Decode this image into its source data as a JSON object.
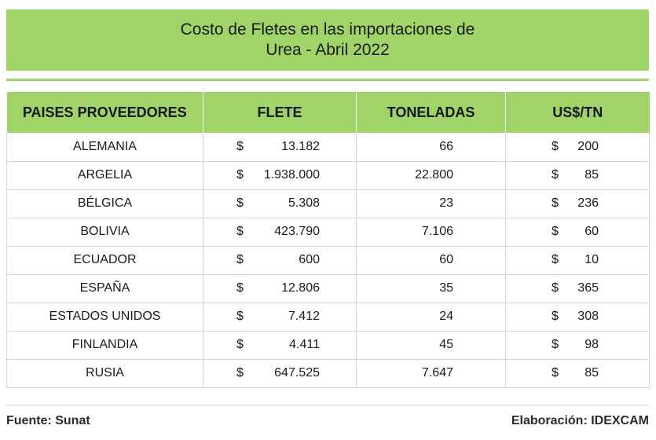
{
  "title": {
    "line1": "Costo de Fletes en las importaciones de",
    "line2": "Urea - Abril 2022"
  },
  "table": {
    "headers": [
      "PAISES PROVEEDORES",
      "FLETE",
      "TONELADAS",
      "US$/TN"
    ],
    "currency_symbol": "$",
    "rows": [
      {
        "pais": "ALEMANIA",
        "flete": "13.182",
        "toneladas": "66",
        "usd_tn": "200"
      },
      {
        "pais": "ARGELIA",
        "flete": "1.938.000",
        "toneladas": "22.800",
        "usd_tn": "85"
      },
      {
        "pais": "BÉLGICA",
        "flete": "5.308",
        "toneladas": "23",
        "usd_tn": "236"
      },
      {
        "pais": "BOLIVIA",
        "flete": "423.790",
        "toneladas": "7.106",
        "usd_tn": "60"
      },
      {
        "pais": "ECUADOR",
        "flete": "600",
        "toneladas": "60",
        "usd_tn": "10"
      },
      {
        "pais": "ESPAÑA",
        "flete": "12.806",
        "toneladas": "35",
        "usd_tn": "365"
      },
      {
        "pais": "ESTADOS UNIDOS",
        "flete": "7.412",
        "toneladas": "24",
        "usd_tn": "308"
      },
      {
        "pais": "FINLANDIA",
        "flete": "4.411",
        "toneladas": "45",
        "usd_tn": "98"
      },
      {
        "pais": "RUSIA",
        "flete": "647.525",
        "toneladas": "7.647",
        "usd_tn": "85"
      }
    ]
  },
  "footer": {
    "source": "Fuente:  Sunat",
    "credit": "Elaboración: IDEXCAM"
  },
  "colors": {
    "accent_green": "#a1d468",
    "grid_line": "#d6d6d6"
  }
}
